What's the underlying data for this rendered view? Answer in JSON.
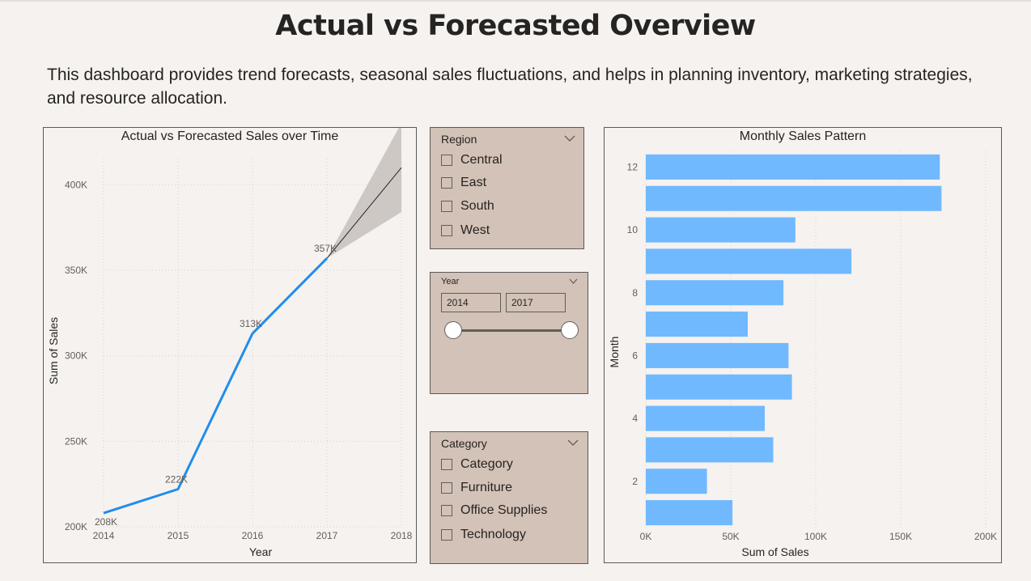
{
  "page": {
    "title": "Actual vs Forecasted Overview",
    "subtitle": "This dashboard provides trend forecasts, seasonal sales fluctuations, and helps in planning inventory, marketing strategies, and resource allocation."
  },
  "slicers": {
    "region": {
      "header": "Region",
      "options": [
        "Central",
        "East",
        "South",
        "West"
      ]
    },
    "year": {
      "header": "Year",
      "start": "2014",
      "end": "2017"
    },
    "category": {
      "header": "Category",
      "options": [
        "Category",
        "Furniture",
        "Office Supplies",
        "Technology"
      ]
    }
  },
  "colors": {
    "line": "#1f8ded",
    "bar": "#70b9ff",
    "forecast_band": "#cbc5c2",
    "forecast_line": "#252423",
    "grid": "#d6d2cf"
  },
  "chart_data": [
    {
      "type": "line",
      "title": "Actual vs Forecasted Sales over Time",
      "xlabel": "Year",
      "ylabel": "Sum of Sales",
      "x": [
        2014,
        2015,
        2016,
        2017
      ],
      "series": [
        {
          "values": [
            208000,
            222000,
            313000,
            357000
          ],
          "labels": [
            "208K",
            "222K",
            "313K",
            "357K"
          ]
        }
      ],
      "forecast": {
        "x": [
          2017,
          2018
        ],
        "values": [
          357000,
          410000
        ],
        "lower": [
          357000,
          384000
        ],
        "upper": [
          357000,
          436000
        ]
      },
      "xticks": [
        "2014",
        "2015",
        "2016",
        "2017",
        "2018"
      ],
      "yticks": [
        200000,
        250000,
        300000,
        350000,
        400000
      ],
      "ytick_labels": [
        "200K",
        "250K",
        "300K",
        "350K",
        "400K"
      ],
      "xlim": [
        2014,
        2018
      ],
      "ylim": [
        200000,
        420000
      ],
      "grid": true
    },
    {
      "type": "bar",
      "orientation": "horizontal",
      "title": "Monthly Sales Pattern",
      "xlabel": "Sum of Sales",
      "ylabel": "Month",
      "categories": [
        12,
        11,
        10,
        9,
        8,
        7,
        6,
        5,
        4,
        3,
        2,
        1
      ],
      "category_labels": [
        "12",
        "",
        "10",
        "",
        "8",
        "",
        "6",
        "",
        "4",
        "",
        "2",
        ""
      ],
      "values": [
        173000,
        174000,
        88000,
        121000,
        81000,
        60000,
        84000,
        86000,
        70000,
        75000,
        36000,
        51000
      ],
      "xticks": [
        0,
        50000,
        100000,
        150000,
        200000
      ],
      "xtick_labels": [
        "0K",
        "50K",
        "100K",
        "150K",
        "200K"
      ],
      "xlim": [
        0,
        200000
      ],
      "grid": true
    }
  ]
}
